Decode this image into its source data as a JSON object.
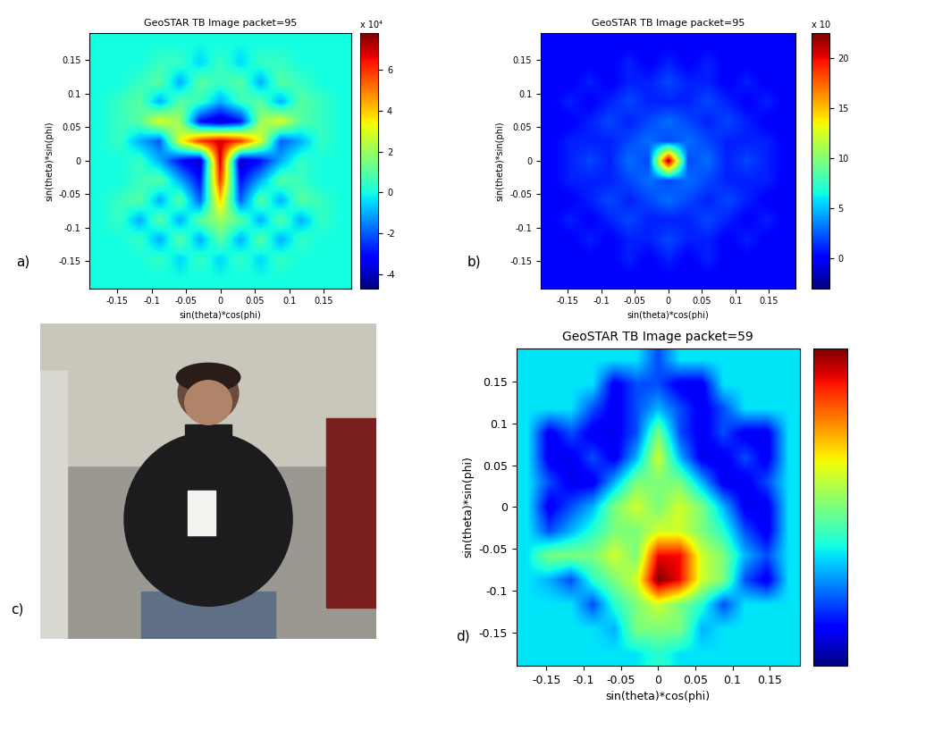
{
  "chart_data": [
    {
      "type": "heatmap",
      "panel_label": "a)",
      "title": "GeoSTAR TB Image packet=95",
      "x_label": "sin(theta)*cos(phi)",
      "y_label": "sin(theta)*sin(phi)",
      "xlim": [
        -0.19,
        0.19
      ],
      "ylim": [
        -0.19,
        0.19
      ],
      "xticks": [
        -0.15,
        -0.1,
        -0.05,
        0,
        0.05,
        0.1,
        0.15
      ],
      "yticks": [
        -0.15,
        -0.1,
        -0.05,
        0,
        0.05,
        0.1,
        0.15
      ],
      "colorbar_range": [
        -4.7,
        7.8
      ],
      "colorbar_ticks": [
        -4,
        -2,
        0,
        2,
        4,
        6
      ],
      "colorbar_multiplier": "x 10⁴",
      "cells": [
        [
          0,
          0,
          0,
          0,
          0,
          0,
          0,
          0,
          0,
          0,
          0,
          0,
          0
        ],
        [
          0,
          0,
          0,
          0.5,
          0.5,
          -0.5,
          0.5,
          -0.5,
          0.5,
          0.5,
          0,
          0,
          0
        ],
        [
          0,
          0,
          0.5,
          1,
          -1,
          1,
          0.5,
          1,
          -1,
          1,
          0.5,
          0,
          0
        ],
        [
          0,
          0.5,
          1,
          -1,
          1,
          0.5,
          -1,
          0.5,
          1,
          -1,
          1,
          0.5,
          0
        ],
        [
          0,
          0.5,
          1,
          3,
          2,
          -3,
          -4,
          -3,
          2,
          3,
          1,
          0.5,
          0
        ],
        [
          0,
          0.5,
          -1,
          -2,
          3,
          6,
          7,
          6,
          3,
          -2,
          -1,
          0.5,
          0
        ],
        [
          0,
          0,
          0.5,
          -1,
          -3,
          -4,
          7,
          -4,
          -3,
          -1,
          0.5,
          0,
          0
        ],
        [
          0,
          0,
          0.5,
          1,
          -1,
          -3,
          6,
          -3,
          -1,
          1,
          0.5,
          0,
          0
        ],
        [
          0,
          0.5,
          1,
          -1,
          1,
          -2,
          4,
          -2,
          1,
          -1,
          1,
          0.5,
          0
        ],
        [
          0,
          0.5,
          -1,
          1,
          -1,
          1,
          2,
          1,
          -1,
          1,
          -1,
          0.5,
          0
        ],
        [
          0,
          0,
          0.5,
          -1,
          1,
          -1,
          1,
          -1,
          1,
          -1,
          0.5,
          0,
          0
        ],
        [
          0,
          0,
          0,
          0.5,
          -0.5,
          0.5,
          -0.5,
          0.5,
          -0.5,
          0.5,
          0,
          0,
          0
        ],
        [
          0,
          0,
          0,
          0,
          0,
          0,
          0,
          0,
          0,
          0,
          0,
          0,
          0
        ]
      ]
    },
    {
      "type": "heatmap",
      "panel_label": "b)",
      "title": "GeoSTAR TB Image packet=95",
      "x_label": "sin(theta)*cos(phi)",
      "y_label": "sin(theta)*sin(phi)",
      "xlim": [
        -0.19,
        0.19
      ],
      "ylim": [
        -0.19,
        0.19
      ],
      "xticks": [
        -0.15,
        -0.1,
        -0.05,
        0,
        0.05,
        0.1,
        0.15
      ],
      "yticks": [
        -0.15,
        -0.1,
        -0.05,
        0,
        0.05,
        0.1,
        0.15
      ],
      "colorbar_range": [
        -3,
        22.5
      ],
      "colorbar_ticks": [
        0,
        5,
        10,
        15,
        20
      ],
      "colorbar_multiplier": "x 10",
      "cells": [
        [
          0,
          0,
          0,
          0,
          0,
          0,
          0,
          0,
          0,
          0,
          0,
          0,
          0
        ],
        [
          0,
          0,
          0,
          0,
          1,
          0,
          1,
          0,
          1,
          0,
          0,
          0,
          0
        ],
        [
          0,
          0,
          1,
          0,
          1,
          1,
          2,
          1,
          1,
          0,
          1,
          0,
          0
        ],
        [
          0,
          1,
          0,
          1,
          2,
          1,
          1,
          1,
          2,
          1,
          0,
          1,
          0
        ],
        [
          0,
          0,
          1,
          2,
          1,
          2,
          3,
          2,
          1,
          2,
          1,
          0,
          0
        ],
        [
          0,
          1,
          1,
          1,
          2,
          3,
          2,
          3,
          2,
          1,
          1,
          1,
          0
        ],
        [
          0,
          1,
          2,
          1,
          3,
          2,
          22,
          2,
          3,
          1,
          2,
          1,
          0
        ],
        [
          0,
          1,
          1,
          1,
          2,
          3,
          2,
          3,
          2,
          1,
          1,
          1,
          0
        ],
        [
          0,
          0,
          1,
          2,
          1,
          2,
          3,
          2,
          1,
          2,
          1,
          0,
          0
        ],
        [
          0,
          1,
          0,
          1,
          2,
          1,
          1,
          1,
          2,
          1,
          0,
          1,
          0
        ],
        [
          0,
          0,
          1,
          0,
          1,
          1,
          2,
          1,
          1,
          0,
          1,
          0,
          0
        ],
        [
          0,
          0,
          0,
          0,
          1,
          0,
          1,
          0,
          1,
          0,
          0,
          0,
          0
        ],
        [
          0,
          0,
          0,
          0,
          0,
          0,
          0,
          0,
          0,
          0,
          0,
          0,
          0
        ]
      ]
    },
    {
      "type": "photo",
      "panel_label": "c)"
    },
    {
      "type": "heatmap",
      "panel_label": "d)",
      "title": "GeoSTAR TB Image packet=59",
      "x_label": "sin(theta)*cos(phi)",
      "y_label": "sin(theta)*sin(phi)",
      "xlim": [
        -0.19,
        0.19
      ],
      "ylim": [
        -0.19,
        0.19
      ],
      "xticks": [
        -0.15,
        -0.1,
        -0.05,
        0,
        0.05,
        0.1,
        0.15
      ],
      "yticks": [
        -0.15,
        -0.1,
        -0.05,
        0,
        0.05,
        0.1,
        0.15
      ],
      "colorbar_range": [
        0,
        10
      ],
      "cells": [
        [
          3.5,
          3.5,
          3.5,
          3.5,
          3.5,
          3.5,
          2,
          3.5,
          3.5,
          3.5,
          3.5,
          3.5,
          3.5
        ],
        [
          3.5,
          3.5,
          3.5,
          3.5,
          1,
          2,
          2,
          1,
          1,
          3.5,
          3.5,
          3.5,
          3.5
        ],
        [
          3.5,
          3.5,
          3.5,
          2,
          1,
          2,
          3,
          2,
          1,
          2,
          3.5,
          3.5,
          3.5
        ],
        [
          3.5,
          1,
          2,
          1,
          1,
          2,
          5,
          2,
          1,
          2,
          1,
          1,
          3.5
        ],
        [
          3.5,
          1,
          1,
          2,
          1,
          3,
          6,
          3,
          1,
          1,
          2,
          1,
          3.5
        ],
        [
          3.5,
          2,
          1,
          1,
          3,
          5,
          5,
          5,
          3,
          1,
          1,
          2,
          3.5
        ],
        [
          3.5,
          1,
          2,
          3,
          5,
          6,
          5,
          6,
          5,
          3,
          1,
          1,
          3.5
        ],
        [
          3.5,
          2,
          3,
          4,
          5,
          5,
          6,
          6,
          5,
          4,
          2,
          1,
          3.5
        ],
        [
          3.5,
          5,
          5,
          5,
          6,
          5,
          9,
          9,
          6,
          5,
          3,
          2,
          3.5
        ],
        [
          3.5,
          3,
          2,
          4,
          5,
          6,
          10,
          9,
          6,
          5,
          2,
          1,
          3.5
        ],
        [
          3.5,
          3.5,
          3.5,
          2,
          4,
          5,
          6,
          5,
          4,
          2,
          3.5,
          3.5,
          3.5
        ],
        [
          3.5,
          3.5,
          3.5,
          3.5,
          3,
          5,
          5,
          5,
          3,
          3.5,
          3.5,
          3.5,
          3.5
        ],
        [
          3.5,
          3.5,
          3.5,
          3.5,
          3.5,
          3.5,
          4,
          3.5,
          3.5,
          3.5,
          3.5,
          3.5,
          3.5
        ]
      ]
    }
  ]
}
